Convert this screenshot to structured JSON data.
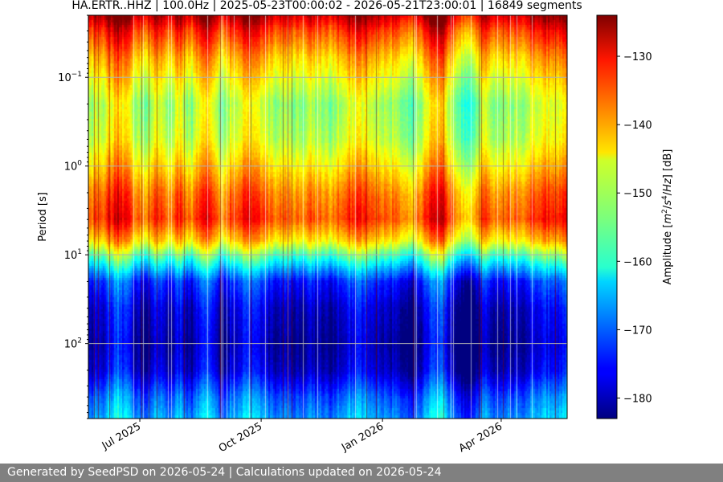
{
  "chart_data": {
    "type": "heatmap",
    "title": "HA.ERTR..HHZ | 100.0Hz | 2025-05-23T00:00:02 - 2026-05-21T23:00:01 | 16849 segments",
    "ylabel": "Period [s]",
    "colorbar_label": "Amplitude [m²/s⁴/Hz] [dB]",
    "colormap": "jet",
    "x_range": [
      "2025-05-23",
      "2026-05-21"
    ],
    "x_ticks": [
      {
        "date": "2025-07-01",
        "label": "Jul 2025"
      },
      {
        "date": "2025-10-01",
        "label": "Oct 2025"
      },
      {
        "date": "2026-01-01",
        "label": "Jan 2026"
      },
      {
        "date": "2026-04-01",
        "label": "Apr 2026"
      }
    ],
    "y_scale": "log",
    "y_inverted": true,
    "y_range": [
      0.02,
      700
    ],
    "y_ticks": [
      {
        "value": 0.1,
        "base": "10",
        "exp": "−1"
      },
      {
        "value": 1,
        "base": "10",
        "exp": "0"
      },
      {
        "value": 10,
        "base": "10",
        "exp": "1"
      },
      {
        "value": 100,
        "base": "10",
        "exp": "2"
      }
    ],
    "color_range": [
      -183,
      -124
    ],
    "color_ticks": [
      -130,
      -140,
      -150,
      -160,
      -170,
      -180
    ],
    "color_tick_labels": [
      "−130",
      "−140",
      "−150",
      "−160",
      "−170",
      "−180"
    ],
    "grid": true,
    "period_profile": [
      {
        "period": 0.02,
        "db": -127
      },
      {
        "period": 0.03,
        "db": -134
      },
      {
        "period": 0.06,
        "db": -142
      },
      {
        "period": 0.1,
        "db": -146
      },
      {
        "period": 0.2,
        "db": -151
      },
      {
        "period": 0.5,
        "db": -149
      },
      {
        "period": 1,
        "db": -144
      },
      {
        "period": 2,
        "db": -138
      },
      {
        "period": 4,
        "db": -135
      },
      {
        "period": 7,
        "db": -144
      },
      {
        "period": 10,
        "db": -155
      },
      {
        "period": 14,
        "db": -164
      },
      {
        "period": 20,
        "db": -173
      },
      {
        "period": 40,
        "db": -178
      },
      {
        "period": 100,
        "db": -180
      },
      {
        "period": 200,
        "db": -178
      },
      {
        "period": 400,
        "db": -170
      },
      {
        "period": 700,
        "db": -166
      }
    ]
  },
  "footer": {
    "text": "Generated by SeedPSD on 2026-05-24 | Calculations updated on 2026-05-24"
  }
}
